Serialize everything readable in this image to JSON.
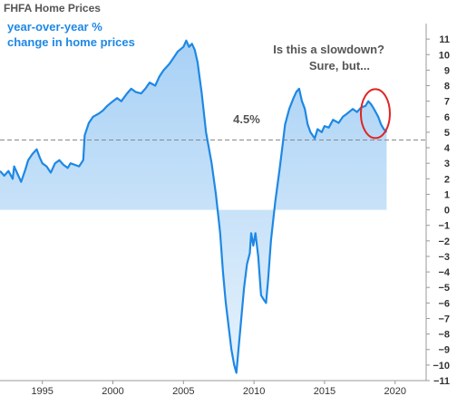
{
  "chart_data": {
    "type": "area",
    "title": "FHFA Home Prices",
    "subtitle_lines": [
      "year-over-year %",
      "change in home prices"
    ],
    "annotation_lines": [
      "Is this a slowdown?",
      "Sure, but..."
    ],
    "reference_line": {
      "value": 4.5,
      "label": "4.5%"
    },
    "xlim": [
      1992.0,
      2022.2
    ],
    "ylim": [
      -11,
      12
    ],
    "x_ticks": [
      1995,
      2000,
      2005,
      2010,
      2015,
      2020
    ],
    "y_ticks": [
      11,
      10,
      9,
      8,
      7,
      6,
      5,
      4,
      3,
      2,
      1,
      0,
      -1,
      -2,
      -3,
      -4,
      -5,
      -6,
      -7,
      -8,
      -9,
      -10,
      -11
    ],
    "grid": false,
    "y_axis_side": "right",
    "colors": {
      "line": "#1e88e5",
      "fill_top": "#a8d1f5",
      "fill_bottom": "#e6f2fc",
      "reference": "#888888",
      "highlight": "#e02424"
    },
    "highlight_region": {
      "x_center": 2018.6,
      "y_center": 6.2
    },
    "series": [
      {
        "values": [
          [
            1992.0,
            2.5
          ],
          [
            1992.3,
            2.2
          ],
          [
            1992.6,
            2.5
          ],
          [
            1992.9,
            2.0
          ],
          [
            1993.0,
            2.8
          ],
          [
            1993.2,
            2.4
          ],
          [
            1993.5,
            1.8
          ],
          [
            1993.8,
            2.6
          ],
          [
            1994.0,
            3.2
          ],
          [
            1994.3,
            3.6
          ],
          [
            1994.6,
            3.9
          ],
          [
            1994.8,
            3.4
          ],
          [
            1995.0,
            3.0
          ],
          [
            1995.3,
            2.8
          ],
          [
            1995.6,
            2.4
          ],
          [
            1995.9,
            3.0
          ],
          [
            1996.2,
            3.2
          ],
          [
            1996.5,
            2.9
          ],
          [
            1996.8,
            2.7
          ],
          [
            1997.0,
            3.0
          ],
          [
            1997.3,
            2.9
          ],
          [
            1997.6,
            2.8
          ],
          [
            1997.9,
            3.2
          ],
          [
            1998.0,
            4.8
          ],
          [
            1998.3,
            5.6
          ],
          [
            1998.6,
            6.0
          ],
          [
            1999.0,
            6.2
          ],
          [
            1999.3,
            6.4
          ],
          [
            1999.6,
            6.7
          ],
          [
            2000.0,
            7.0
          ],
          [
            2000.3,
            7.2
          ],
          [
            2000.6,
            7.0
          ],
          [
            2001.0,
            7.5
          ],
          [
            2001.3,
            7.8
          ],
          [
            2001.6,
            7.6
          ],
          [
            2002.0,
            7.5
          ],
          [
            2002.3,
            7.8
          ],
          [
            2002.6,
            8.2
          ],
          [
            2003.0,
            8.0
          ],
          [
            2003.3,
            8.6
          ],
          [
            2003.6,
            9.0
          ],
          [
            2004.0,
            9.4
          ],
          [
            2004.3,
            9.8
          ],
          [
            2004.6,
            10.2
          ],
          [
            2005.0,
            10.5
          ],
          [
            2005.2,
            10.9
          ],
          [
            2005.4,
            10.5
          ],
          [
            2005.6,
            10.7
          ],
          [
            2005.8,
            10.3
          ],
          [
            2006.0,
            9.5
          ],
          [
            2006.3,
            7.5
          ],
          [
            2006.6,
            5.0
          ],
          [
            2007.0,
            3.0
          ],
          [
            2007.3,
            1.0
          ],
          [
            2007.6,
            -1.5
          ],
          [
            2007.8,
            -4.0
          ],
          [
            2008.0,
            -6.0
          ],
          [
            2008.2,
            -7.5
          ],
          [
            2008.4,
            -9.0
          ],
          [
            2008.6,
            -10.0
          ],
          [
            2008.75,
            -10.5
          ],
          [
            2008.9,
            -9.0
          ],
          [
            2009.1,
            -7.0
          ],
          [
            2009.3,
            -5.0
          ],
          [
            2009.5,
            -3.5
          ],
          [
            2009.7,
            -2.8
          ],
          [
            2009.8,
            -1.5
          ],
          [
            2009.95,
            -2.3
          ],
          [
            2010.1,
            -1.5
          ],
          [
            2010.3,
            -3.0
          ],
          [
            2010.5,
            -5.5
          ],
          [
            2010.7,
            -5.8
          ],
          [
            2010.85,
            -6.0
          ],
          [
            2011.0,
            -4.5
          ],
          [
            2011.2,
            -2.0
          ],
          [
            2011.5,
            0.5
          ],
          [
            2011.8,
            2.5
          ],
          [
            2012.0,
            4.0
          ],
          [
            2012.2,
            5.5
          ],
          [
            2012.5,
            6.5
          ],
          [
            2012.8,
            7.2
          ],
          [
            2013.0,
            7.6
          ],
          [
            2013.2,
            7.8
          ],
          [
            2013.4,
            7.0
          ],
          [
            2013.6,
            6.5
          ],
          [
            2013.8,
            5.5
          ],
          [
            2014.0,
            5.0
          ],
          [
            2014.3,
            4.6
          ],
          [
            2014.5,
            5.2
          ],
          [
            2014.8,
            5.0
          ],
          [
            2015.0,
            5.4
          ],
          [
            2015.3,
            5.3
          ],
          [
            2015.6,
            5.8
          ],
          [
            2016.0,
            5.6
          ],
          [
            2016.3,
            6.0
          ],
          [
            2016.6,
            6.2
          ],
          [
            2017.0,
            6.5
          ],
          [
            2017.3,
            6.3
          ],
          [
            2017.6,
            6.6
          ],
          [
            2017.9,
            6.7
          ],
          [
            2018.1,
            7.0
          ],
          [
            2018.3,
            6.8
          ],
          [
            2018.5,
            6.5
          ],
          [
            2018.8,
            6.0
          ],
          [
            2019.0,
            5.5
          ],
          [
            2019.2,
            5.2
          ],
          [
            2019.4,
            5.0
          ]
        ]
      }
    ]
  }
}
